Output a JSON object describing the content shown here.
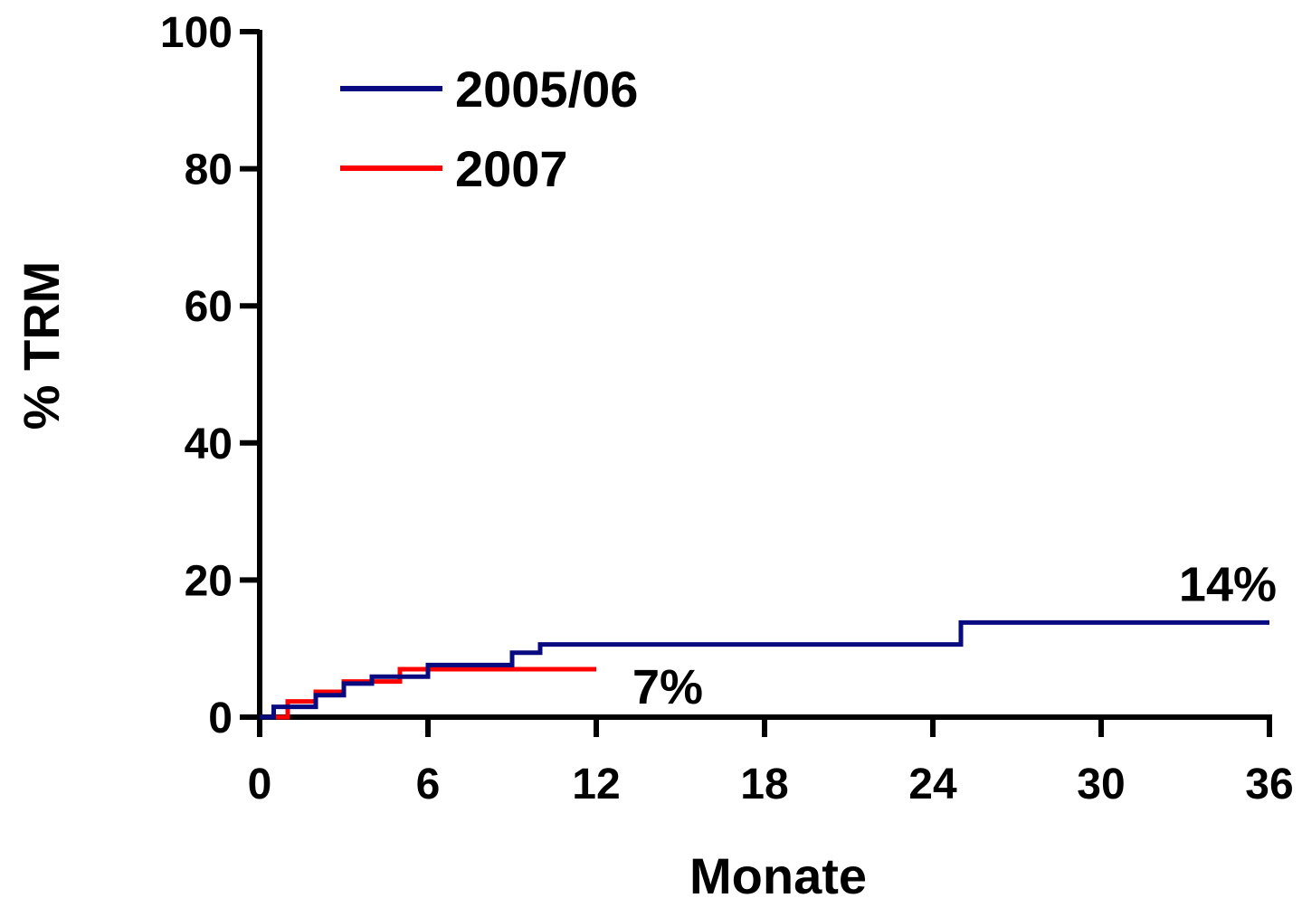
{
  "chart_data": {
    "type": "line",
    "step": true,
    "xlabel": "Monate",
    "ylabel": "% TRM",
    "xlim": [
      0,
      36
    ],
    "ylim": [
      0,
      100
    ],
    "xticks": [
      "0",
      "6",
      "12",
      "18",
      "24",
      "30",
      "36"
    ],
    "yticks": [
      "0",
      "20",
      "40",
      "60",
      "80",
      "100"
    ],
    "legend_position": "top-left",
    "grid": false,
    "series": [
      {
        "name": "2005/06",
        "color": "#0a0a80",
        "x": [
          0,
          0.5,
          2,
          3,
          4,
          6,
          9,
          10,
          25,
          36
        ],
        "y": [
          0,
          1.5,
          3.2,
          4.9,
          5.9,
          7.6,
          9.4,
          10.6,
          13.8,
          13.8
        ]
      },
      {
        "name": "2007",
        "color": "#ff0000",
        "x": [
          0,
          1,
          2,
          3,
          5,
          12
        ],
        "y": [
          0,
          2.3,
          3.7,
          5.2,
          7.0,
          7.0
        ]
      }
    ],
    "annotations": [
      {
        "text": "14%",
        "series": "2005/06"
      },
      {
        "text": "7%",
        "series": "2007"
      }
    ]
  }
}
